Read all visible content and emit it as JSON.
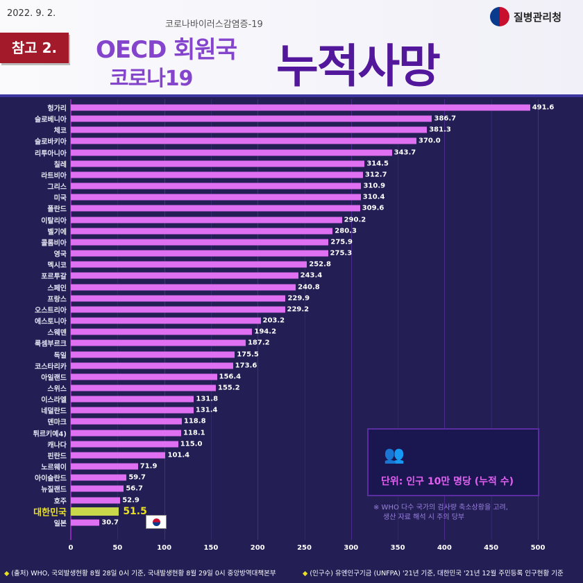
{
  "header": {
    "date": "2022. 9. 2.",
    "ref": "참고 2.",
    "subtitle": "코로나바이러스감염증-19",
    "title1": "OECD 회원국",
    "title2": "코로나19",
    "title_big": "누적사망",
    "agency": "질병관리청"
  },
  "colors": {
    "bar": "#e070f2",
    "highlight": "#c8d84a",
    "background": "#231f55"
  },
  "chart_data": {
    "type": "bar",
    "orientation": "horizontal",
    "categories": [
      "헝가리",
      "슬로베니아",
      "체코",
      "슬로바키아",
      "리투아니아",
      "칠레",
      "라트비아",
      "그리스",
      "미국",
      "폴란드",
      "이탈리아",
      "벨기에",
      "콜롬비아",
      "영국",
      "멕시코",
      "포르투갈",
      "스페인",
      "프랑스",
      "오스트리아",
      "에스토니아",
      "스웨덴",
      "룩셈부르크",
      "독일",
      "코스타리카",
      "아일랜드",
      "스위스",
      "이스라엘",
      "네덜란드",
      "덴마크",
      "튀르키예4)",
      "캐나다",
      "핀란드",
      "노르웨이",
      "아이슬란드",
      "뉴질랜드",
      "호주",
      "대한민국",
      "일본"
    ],
    "values": [
      491.6,
      386.7,
      381.3,
      370.0,
      343.7,
      314.5,
      312.7,
      310.9,
      310.4,
      309.6,
      290.2,
      280.3,
      275.9,
      275.3,
      252.8,
      243.4,
      240.8,
      229.9,
      229.2,
      203.2,
      194.2,
      187.2,
      175.5,
      173.6,
      156.4,
      155.2,
      131.8,
      131.4,
      118.8,
      118.1,
      115.0,
      101.4,
      71.9,
      59.7,
      56.7,
      52.9,
      51.5,
      30.7
    ],
    "highlight": "대한민국",
    "xlim": [
      0,
      500
    ],
    "xticks": [
      0,
      50,
      100,
      150,
      200,
      250,
      300,
      350,
      400,
      450,
      500
    ]
  },
  "unit": "단위: 인구 10만 명당 (누적 수)",
  "note": [
    "※ WHO 다수 국가의 검사량 축소상황을 고려,",
    "생산 자료 해석 시 주의 당부"
  ],
  "footer": {
    "source": "(출처) WHO, 국외발생현황 8월 28일 0시 기준, 국내발생현황 8월 29일 0시  중앙방역대책본부",
    "population": "(인구수)  유엔인구기금 (UNFPA) '21년 기준, 대한민국 '21년 12월 주민등록 인구현황 기준"
  }
}
